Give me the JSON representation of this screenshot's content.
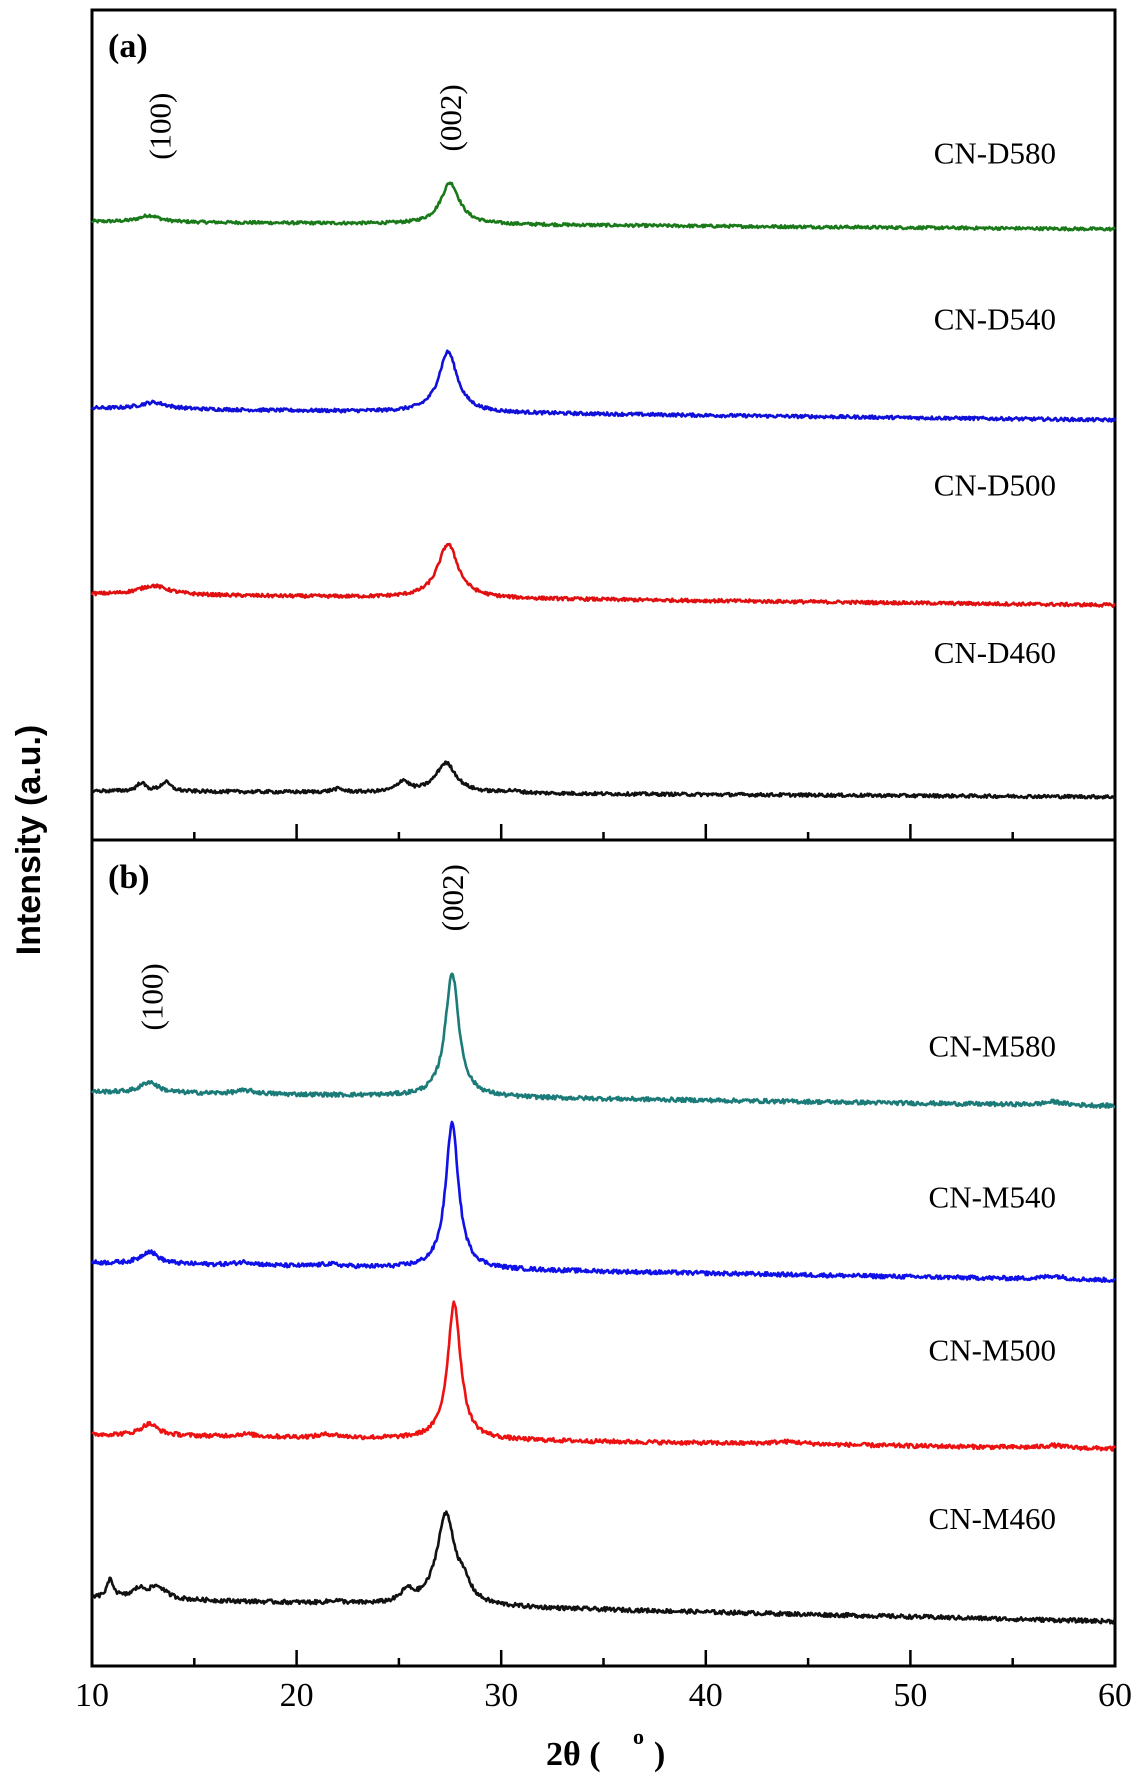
{
  "chart_data": {
    "type": "line",
    "title": "",
    "xlabel": "2θ ( ° )",
    "xlabel_parts": {
      "main": "2θ (",
      "degree": "o",
      "close": ")"
    },
    "ylabel": "Intensity (a.u.)",
    "xlim": [
      10,
      60
    ],
    "x_ticks_major": [
      10,
      20,
      30,
      40,
      50,
      60
    ],
    "x_tick_labels": [
      "10",
      "20",
      "30",
      "40",
      "50",
      "60"
    ],
    "x_ticks_minor": [
      15,
      25,
      35,
      45,
      55
    ],
    "grid": false,
    "legend": "inline labels at right end of each trace",
    "panels": [
      {
        "label": "(a)",
        "ylim": [
          0,
          100
        ],
        "annotations": [
          {
            "text": "(100)",
            "x": 13.3,
            "y": 86
          },
          {
            "text": "(002)",
            "x": 27.5,
            "y": 87
          }
        ],
        "series": [
          {
            "name": "CN-D580",
            "color": "#1a7a1a",
            "label_y": 81.5,
            "baseline_start": 74.5,
            "baseline_end": 73.6,
            "noise": 0.18,
            "peaks": [
              {
                "x": 12.8,
                "height": 0.8,
                "width": 0.6
              },
              {
                "x": 27.5,
                "height": 5.0,
                "width": 0.55
              }
            ]
          },
          {
            "name": "CN-D540",
            "color": "#1010d8",
            "label_y": 61.5,
            "baseline_start": 52.0,
            "baseline_end": 50.6,
            "noise": 0.2,
            "peaks": [
              {
                "x": 13.0,
                "height": 0.8,
                "width": 0.8
              },
              {
                "x": 27.4,
                "height": 7.3,
                "width": 0.55
              }
            ]
          },
          {
            "name": "CN-D500",
            "color": "#e01010",
            "label_y": 41.5,
            "baseline_start": 29.6,
            "baseline_end": 28.3,
            "noise": 0.2,
            "peaks": [
              {
                "x": 13.0,
                "height": 1.1,
                "width": 0.9
              },
              {
                "x": 27.4,
                "height": 6.5,
                "width": 0.6
              }
            ]
          },
          {
            "name": "CN-D460",
            "color": "#111111",
            "label_y": 21.3,
            "baseline_start": 5.9,
            "baseline_end": 5.2,
            "noise": 0.2,
            "peaks": [
              {
                "x": 12.4,
                "height": 1.0,
                "width": 0.25
              },
              {
                "x": 13.6,
                "height": 1.1,
                "width": 0.3
              },
              {
                "x": 22.0,
                "height": 0.4,
                "width": 0.35
              },
              {
                "x": 25.2,
                "height": 1.3,
                "width": 0.35
              },
              {
                "x": 27.3,
                "height": 3.6,
                "width": 0.6
              },
              {
                "x": 30.5,
                "height": 0.25,
                "width": 0.5
              }
            ]
          }
        ]
      },
      {
        "label": "(b)",
        "ylim": [
          0,
          100
        ],
        "annotations": [
          {
            "text": "(100)",
            "x": 12.9,
            "y": 81
          },
          {
            "text": "(002)",
            "x": 27.6,
            "y": 93
          }
        ],
        "series": [
          {
            "name": "CN-M580",
            "color": "#1b7b78",
            "label_y": 73.8,
            "baseline_start": 69.5,
            "baseline_end": 67.8,
            "noise": 0.25,
            "peaks": [
              {
                "x": 12.8,
                "height": 1.3,
                "width": 0.5
              },
              {
                "x": 17.5,
                "height": 0.4,
                "width": 0.6
              },
              {
                "x": 27.6,
                "height": 15.0,
                "width": 0.4
              },
              {
                "x": 57.0,
                "height": 0.4,
                "width": 0.6
              }
            ]
          },
          {
            "name": "CN-M540",
            "color": "#1010e8",
            "label_y": 55.5,
            "baseline_start": 48.8,
            "baseline_end": 46.7,
            "noise": 0.25,
            "peaks": [
              {
                "x": 12.8,
                "height": 1.5,
                "width": 0.5
              },
              {
                "x": 17.5,
                "height": 0.4,
                "width": 0.6
              },
              {
                "x": 21.6,
                "height": 0.3,
                "width": 0.6
              },
              {
                "x": 27.6,
                "height": 17.6,
                "width": 0.38
              },
              {
                "x": 57.0,
                "height": 0.4,
                "width": 0.6
              }
            ]
          },
          {
            "name": "CN-M500",
            "color": "#ee1111",
            "label_y": 37.0,
            "baseline_start": 28.0,
            "baseline_end": 26.3,
            "noise": 0.25,
            "peaks": [
              {
                "x": 12.8,
                "height": 1.4,
                "width": 0.5
              },
              {
                "x": 17.5,
                "height": 0.3,
                "width": 0.6
              },
              {
                "x": 21.6,
                "height": 0.4,
                "width": 0.6
              },
              {
                "x": 27.7,
                "height": 16.6,
                "width": 0.38
              },
              {
                "x": 44.0,
                "height": 0.3,
                "width": 1.0
              },
              {
                "x": 57.0,
                "height": 0.3,
                "width": 0.6
              }
            ]
          },
          {
            "name": "CN-M460",
            "color": "#111111",
            "label_y": 16.6,
            "baseline_start": 8.2,
            "baseline_end": 5.4,
            "noise": 0.25,
            "peaks": [
              {
                "x": 10.9,
                "height": 2.2,
                "width": 0.2
              },
              {
                "x": 12.3,
                "height": 1.1,
                "width": 0.4
              },
              {
                "x": 13.2,
                "height": 1.5,
                "width": 0.5
              },
              {
                "x": 21.9,
                "height": 0.3,
                "width": 0.4
              },
              {
                "x": 25.4,
                "height": 1.4,
                "width": 0.35
              },
              {
                "x": 27.3,
                "height": 11.0,
                "width": 0.55
              },
              {
                "x": 28.2,
                "height": 1.6,
                "width": 0.35
              }
            ]
          }
        ]
      }
    ]
  }
}
